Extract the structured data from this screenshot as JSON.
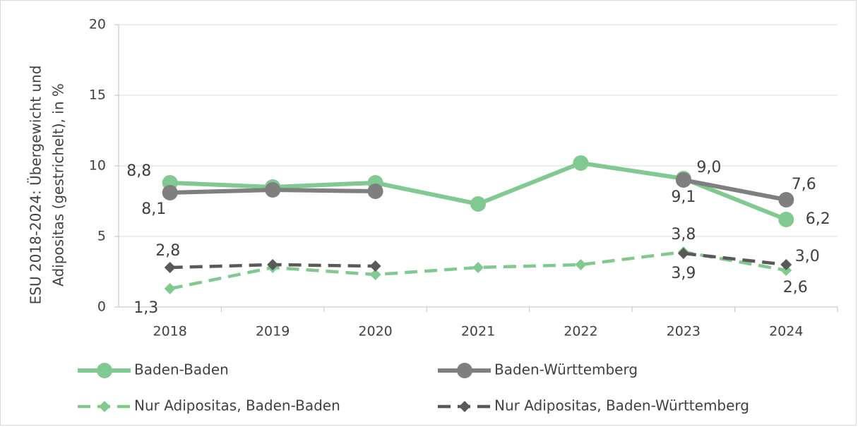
{
  "chart_data": {
    "type": "line",
    "y_axis_label": [
      "ESU 2018-2024: Übergewicht und",
      "Adipositas (gestrichelt), in %"
    ],
    "categories": [
      "2018",
      "2019",
      "2020",
      "2021",
      "2022",
      "2023",
      "2024"
    ],
    "ylim": [
      0,
      20
    ],
    "yticks": [
      0,
      5,
      10,
      15,
      20
    ],
    "grid": true,
    "legend": "bottom",
    "series": [
      {
        "name": "Baden-Baden",
        "color": "#80c990",
        "line_style": "solid",
        "marker": "circle",
        "values": [
          8.8,
          8.5,
          8.8,
          7.3,
          10.2,
          9.1,
          6.2
        ],
        "value_labels": [
          "8,8",
          null,
          null,
          null,
          null,
          "9,1",
          "6,2"
        ]
      },
      {
        "name": "Baden-Württemberg",
        "color": "#7f7f7f",
        "line_style": "solid",
        "marker": "circle",
        "values": [
          8.1,
          8.3,
          8.2,
          null,
          null,
          9.0,
          7.6
        ],
        "value_labels": [
          "8,1",
          null,
          null,
          null,
          null,
          "9,0",
          "7,6"
        ]
      },
      {
        "name": "Nur Adipositas, Baden-Baden",
        "color": "#80c990",
        "line_style": "dashed",
        "marker": "diamond",
        "values": [
          1.3,
          2.8,
          2.3,
          2.8,
          3.0,
          3.9,
          2.6
        ],
        "value_labels": [
          "1,3",
          null,
          null,
          null,
          null,
          "3,9",
          "2,6"
        ]
      },
      {
        "name": "Nur Adipositas, Baden-Württemberg",
        "color": "#595959",
        "line_style": "dashed",
        "marker": "diamond",
        "values": [
          2.8,
          3.0,
          2.9,
          null,
          null,
          3.8,
          3.0
        ],
        "value_labels": [
          "2,8",
          null,
          null,
          null,
          null,
          "3,8",
          "3,0"
        ]
      }
    ]
  }
}
